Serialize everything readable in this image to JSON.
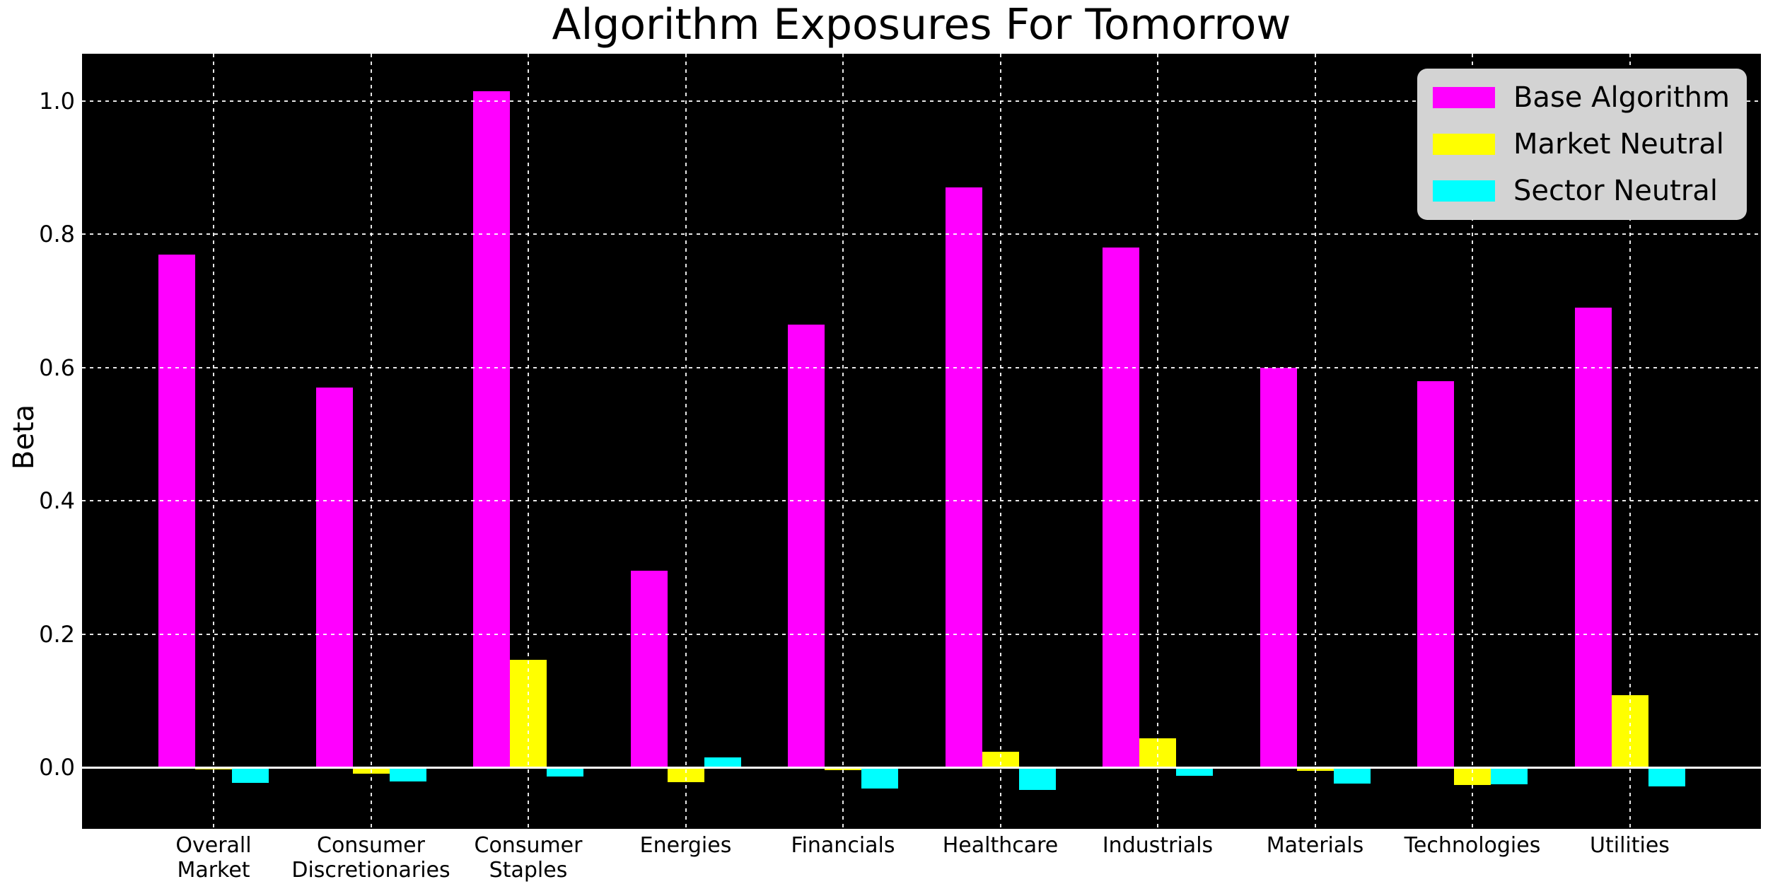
{
  "chart_data": {
    "type": "bar",
    "title": "Algorithm Exposures For Tomorrow",
    "ylabel": "Beta",
    "xlabel": "",
    "categories": [
      "Overall Market",
      "Consumer Discretionaries",
      "Consumer Staples",
      "Energies",
      "Financials",
      "Healthcare",
      "Industrials",
      "Materials",
      "Technologies",
      "Utilities"
    ],
    "category_lines": [
      [
        "Overall",
        "Market"
      ],
      [
        "Consumer",
        "Discretionaries"
      ],
      [
        "Consumer",
        "Staples"
      ],
      [
        "Energies"
      ],
      [
        "Financials"
      ],
      [
        "Healthcare"
      ],
      [
        "Industrials"
      ],
      [
        "Materials"
      ],
      [
        "Technologies"
      ],
      [
        "Utilities"
      ]
    ],
    "series": [
      {
        "name": "Base Algorithm",
        "color": "#ff00ff",
        "values": [
          0.77,
          0.57,
          1.015,
          0.295,
          0.665,
          0.87,
          0.78,
          0.6,
          0.58,
          0.69
        ]
      },
      {
        "name": "Market Neutral",
        "color": "#ffff00",
        "values": [
          -0.003,
          -0.009,
          0.162,
          -0.022,
          -0.004,
          0.024,
          0.044,
          -0.005,
          -0.026,
          0.109
        ]
      },
      {
        "name": "Sector Neutral",
        "color": "#00ffff",
        "values": [
          -0.023,
          -0.021,
          -0.014,
          0.015,
          -0.032,
          -0.034,
          -0.012,
          -0.024,
          -0.025,
          -0.028
        ]
      }
    ],
    "yticks": [
      0.0,
      0.2,
      0.4,
      0.6,
      0.8,
      1.0
    ],
    "ytick_labels": [
      "0.0",
      "0.2",
      "0.4",
      "0.6",
      "0.8",
      "1.0"
    ],
    "ylim": [
      -0.092,
      1.071
    ],
    "grid": true,
    "zero_line": 0.0,
    "legend": {
      "position": "upper right",
      "bg": "#d3d3d3"
    },
    "colors": {
      "fig_bg": "#ffffff",
      "plot_bg": "#000000",
      "grid": "#ffffff",
      "zero_line": "#ffffff",
      "text": "#000000"
    }
  }
}
